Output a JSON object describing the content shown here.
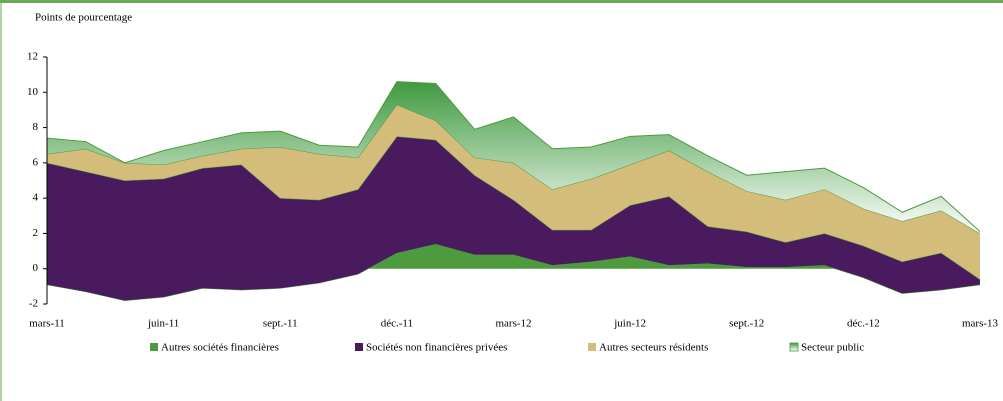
{
  "chart_data": {
    "type": "stacked-area",
    "y_label": "Points de pourcentage",
    "categories": [
      "mars-11",
      null,
      null,
      "juin-11",
      null,
      null,
      "sept.-11",
      null,
      null,
      "déc.-11",
      null,
      null,
      "mars-12",
      null,
      null,
      "juin-12",
      null,
      null,
      "sept.-12",
      null,
      null,
      "déc.-12",
      null,
      null,
      "mars-13"
    ],
    "series": [
      {
        "name": "Autres sociétés financières",
        "color": "#4e9a3e",
        "values": [
          -0.9,
          -1.3,
          -1.8,
          -1.6,
          -1.1,
          -1.2,
          -1.1,
          -0.8,
          -0.3,
          0.9,
          1.4,
          0.8,
          0.8,
          0.2,
          0.4,
          0.7,
          0.2,
          0.3,
          0.1,
          0.1,
          0.2,
          -0.5,
          -1.4,
          -1.2,
          -0.9
        ]
      },
      {
        "name": "Sociétés non financières privées",
        "color": "#4a1a5e",
        "values": [
          6.9,
          6.8,
          6.8,
          6.7,
          6.8,
          7.1,
          5.1,
          4.7,
          4.8,
          6.6,
          5.9,
          4.5,
          3.1,
          2.0,
          1.8,
          2.9,
          3.9,
          2.1,
          2.0,
          1.4,
          1.8,
          1.8,
          1.8,
          2.1,
          0.3
        ]
      },
      {
        "name": "Autres secteurs résidents",
        "color": "#d4bc7a",
        "values": [
          0.5,
          1.3,
          1.0,
          0.8,
          0.7,
          0.9,
          2.9,
          2.6,
          1.8,
          1.8,
          1.1,
          1.0,
          2.1,
          2.3,
          2.9,
          2.3,
          2.6,
          3.1,
          2.3,
          2.4,
          2.5,
          2.1,
          2.3,
          2.4,
          2.6
        ]
      },
      {
        "name": "Secteur public",
        "color": "#3f9a3f",
        "gradient": true,
        "values": [
          0.9,
          0.4,
          0.0,
          0.8,
          0.8,
          0.9,
          0.9,
          0.5,
          0.6,
          1.3,
          2.1,
          1.6,
          2.6,
          2.3,
          1.8,
          1.6,
          0.9,
          0.9,
          0.9,
          1.6,
          1.2,
          1.2,
          0.5,
          0.8,
          0.1
        ]
      }
    ],
    "ylim": [
      -2,
      12
    ],
    "yticks": [
      -2,
      0,
      2,
      4,
      6,
      8,
      10,
      12
    ]
  }
}
